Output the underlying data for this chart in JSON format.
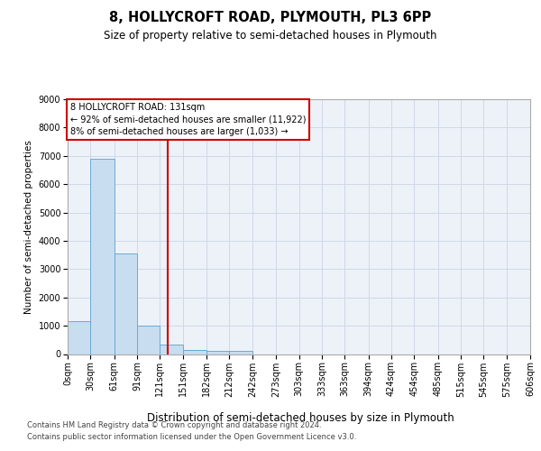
{
  "title": "8, HOLLYCROFT ROAD, PLYMOUTH, PL3 6PP",
  "subtitle": "Size of property relative to semi-detached houses in Plymouth",
  "xlabel": "Distribution of semi-detached houses by size in Plymouth",
  "ylabel": "Number of semi-detached properties",
  "footer1": "Contains HM Land Registry data © Crown copyright and database right 2024.",
  "footer2": "Contains public sector information licensed under the Open Government Licence v3.0.",
  "annotation_line1": "8 HOLLYCROFT ROAD: 131sqm",
  "annotation_line2": "← 92% of semi-detached houses are smaller (11,922)",
  "annotation_line3": "8% of semi-detached houses are larger (1,033) →",
  "property_size": 131,
  "bin_edges": [
    0,
    30,
    61,
    91,
    121,
    151,
    182,
    212,
    242,
    273,
    303,
    333,
    363,
    394,
    424,
    454,
    485,
    515,
    545,
    575,
    606
  ],
  "bar_heights": [
    1150,
    6900,
    3550,
    1000,
    330,
    150,
    100,
    100,
    0,
    0,
    0,
    0,
    0,
    0,
    0,
    0,
    0,
    0,
    0,
    0
  ],
  "bar_color": "#c8ddef",
  "bar_edge_color": "#6aaad4",
  "red_line_color": "#cc0000",
  "grid_color": "#d0d8e8",
  "bg_color": "#edf2f8",
  "ylim_max": 9000,
  "yticks": [
    0,
    1000,
    2000,
    3000,
    4000,
    5000,
    6000,
    7000,
    8000,
    9000
  ],
  "title_fontsize": 10.5,
  "subtitle_fontsize": 8.5,
  "ylabel_fontsize": 7.5,
  "xlabel_fontsize": 8.5,
  "tick_fontsize": 7,
  "annotation_fontsize": 7,
  "footer_fontsize": 6
}
